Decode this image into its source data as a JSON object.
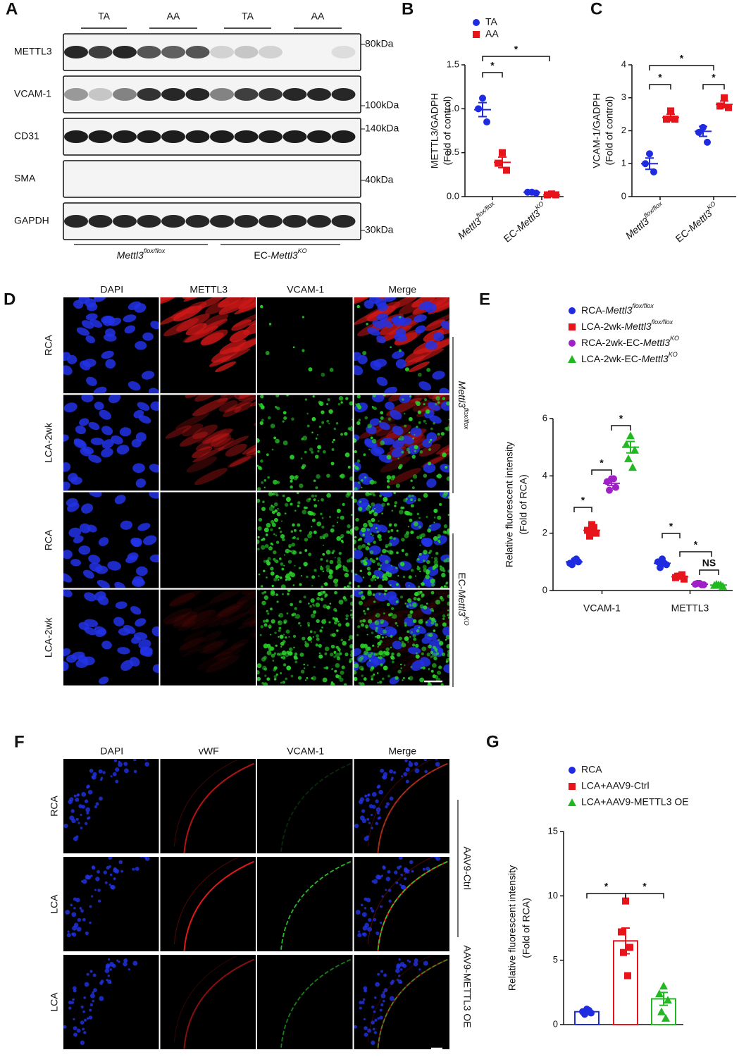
{
  "blot": {
    "label": "A",
    "groups": [
      "TA",
      "AA",
      "TA",
      "AA"
    ],
    "rows": [
      "METTL3",
      "VCAM-1",
      "CD31",
      "SMA",
      "GAPDH"
    ],
    "markers": [
      "80kDa",
      "100kDa",
      "140kDa",
      "40kDa",
      "30kDa"
    ],
    "genotypes": [
      {
        "gene": "Mettl3",
        "sup": "flox/flox"
      },
      {
        "pre": "EC-",
        "gene": "Mettl3",
        "sup": "KO"
      }
    ]
  },
  "micrographs": [
    {
      "label": "D",
      "columns": [
        "DAPI",
        "METTL3",
        "VCAM-1",
        "Merge"
      ],
      "rows": [
        "RCA",
        "LCA-2wk",
        "RCA",
        "LCA-2wk"
      ],
      "groups": [
        {
          "gene": "Mettl3",
          "sup": "flox/flox"
        },
        {
          "pre": "EC-",
          "gene": "Mettl3",
          "sup": "KO"
        }
      ]
    },
    {
      "label": "F",
      "columns": [
        "DAPI",
        "vWF",
        "VCAM-1",
        "Merge"
      ],
      "rows": [
        "RCA",
        "LCA",
        "LCA"
      ],
      "groups": [
        "AAV9-Ctrl",
        "AAV9-METTL3 OE"
      ]
    }
  ],
  "chart_data": [
    {
      "label": "B",
      "type": "scatter",
      "ylabel": [
        "METTL3/GADPH",
        "(Fold of control)"
      ],
      "categories": [
        {
          "gene": "Mettl3",
          "sup": "flox/flox"
        },
        {
          "pre": "EC-",
          "gene": "Mettl3",
          "sup": "KO"
        }
      ],
      "ylim": [
        0,
        1.5
      ],
      "yticks": [
        {
          "value": 0,
          "label": "0.0"
        },
        0.5,
        {
          "value": 1,
          "label": "1.0"
        },
        1.5
      ],
      "series": [
        {
          "name": "TA",
          "color": "#1f2be0",
          "marker": "circle",
          "values": [
            [
              1.12,
              1.0,
              0.85
            ],
            [
              0.05,
              0.05,
              0.04
            ]
          ],
          "mean": [
            0.99,
            0.05
          ],
          "sem": [
            0.08,
            0.003
          ]
        },
        {
          "name": "AA",
          "color": "#e8141c",
          "marker": "square",
          "values": [
            [
              0.5,
              0.38,
              0.3
            ],
            [
              0.03,
              0.02,
              0.02
            ]
          ],
          "mean": [
            0.39,
            0.02
          ],
          "sem": [
            0.06,
            0.003
          ]
        }
      ],
      "annotations": [
        "*",
        "*"
      ]
    },
    {
      "label": "C",
      "type": "scatter",
      "ylabel": [
        "VCAM-1/GADPH",
        "(Fold of control)"
      ],
      "categories": [
        {
          "gene": "Mettl3",
          "sup": "flox/flox"
        },
        {
          "pre": "EC-",
          "gene": "Mettl3",
          "sup": "KO"
        }
      ],
      "ylim": [
        0,
        4
      ],
      "yticks": [
        0,
        1,
        2,
        3,
        4
      ],
      "series": [
        {
          "name": "TA",
          "color": "#1f2be0",
          "marker": "circle",
          "values": [
            [
              1.3,
              1.0,
              0.75
            ],
            [
              2.1,
              1.95,
              1.65
            ]
          ],
          "mean": [
            1.0,
            1.98
          ],
          "sem": [
            0.17,
            0.15
          ]
        },
        {
          "name": "AA",
          "color": "#e8141c",
          "marker": "square",
          "values": [
            [
              2.6,
              2.35,
              2.35
            ],
            [
              3.0,
              2.75,
              2.7
            ]
          ],
          "mean": [
            2.4,
            2.8
          ],
          "sem": [
            0.1,
            0.1
          ]
        }
      ],
      "annotations": [
        "*",
        "*",
        "*"
      ]
    },
    {
      "label": "E",
      "type": "scatter",
      "ylabel": [
        "Relative fluorescent intensity",
        "(Fold of RCA)"
      ],
      "categories": [
        "VCAM-1",
        "METTL3"
      ],
      "ylim": [
        0,
        6
      ],
      "yticks": [
        0,
        2,
        4,
        6
      ],
      "series": [
        {
          "name": {
            "pre": "RCA-",
            "gene": "Mettl3",
            "sup": "flox/flox"
          },
          "color": "#1f2be0",
          "marker": "circle",
          "values": [
            [
              1.05,
              0.95,
              1.0,
              0.9,
              1.1
            ],
            [
              1.1,
              1.0,
              0.9,
              0.8,
              0.95
            ]
          ],
          "mean": [
            1.0,
            0.95
          ],
          "sem": [
            0.04,
            0.05
          ]
        },
        {
          "name": {
            "pre": "LCA-2wk-",
            "gene": "Mettl3",
            "sup": "flox/flox"
          },
          "color": "#e8141c",
          "marker": "square",
          "values": [
            [
              2.3,
              2.1,
              2.0,
              1.9,
              2.2
            ],
            [
              0.5,
              0.45,
              0.4,
              0.5,
              0.55
            ]
          ],
          "mean": [
            2.1,
            0.48
          ],
          "sem": [
            0.07,
            0.03
          ]
        },
        {
          "name": {
            "pre": "RCA-2wk-EC-",
            "gene": "Mettl3",
            "sup": "KO"
          },
          "color": "#a020c8",
          "marker": "circle",
          "values": [
            [
              3.9,
              3.8,
              3.6,
              3.5,
              3.9
            ],
            [
              0.25,
              0.22,
              0.2,
              0.25,
              0.2
            ]
          ],
          "mean": [
            3.74,
            0.22
          ],
          "sem": [
            0.08,
            0.01
          ]
        },
        {
          "name": {
            "pre": "LCA-2wk-EC-",
            "gene": "Mettl3",
            "sup": "KO"
          },
          "color": "#22b822",
          "marker": "triangle",
          "values": [
            [
              5.4,
              5.1,
              4.9,
              4.6,
              4.3
            ],
            [
              0.2,
              0.18,
              0.15,
              0.22,
              0.2
            ]
          ],
          "mean": [
            5.0,
            0.19
          ],
          "sem": [
            0.2,
            0.01
          ]
        }
      ],
      "annotations": [
        "*",
        "*",
        "*",
        "*",
        "*",
        "NS"
      ]
    },
    {
      "label": "G",
      "type": "bar",
      "ylabel": [
        "Relative fluorescent intensity",
        "(Fold of RCA)"
      ],
      "ylim": [
        0,
        15
      ],
      "yticks": [
        0,
        5,
        10,
        15
      ],
      "series": [
        {
          "name": "RCA",
          "color": "#1f2be0",
          "marker": "circle",
          "values": [
            [
              1.2,
              1.0,
              0.9,
              0.8,
              1.1
            ]
          ],
          "mean": [
            1.0
          ],
          "sem": [
            0.1
          ]
        },
        {
          "name": "LCA+AAV9-Ctrl",
          "color": "#e8141c",
          "marker": "square",
          "values": [
            [
              9.6,
              7.2,
              6.0,
              5.6,
              3.8
            ]
          ],
          "mean": [
            6.5
          ],
          "sem": [
            1.0
          ]
        },
        {
          "name": "LCA+AAV9-METTL3 OE",
          "color": "#22b822",
          "marker": "triangle",
          "values": [
            [
              3.0,
              2.4,
              1.9,
              1.0,
              0.5
            ]
          ],
          "mean": [
            2.0
          ],
          "sem": [
            0.5
          ]
        }
      ],
      "annotations": [
        "*",
        "*"
      ]
    }
  ]
}
